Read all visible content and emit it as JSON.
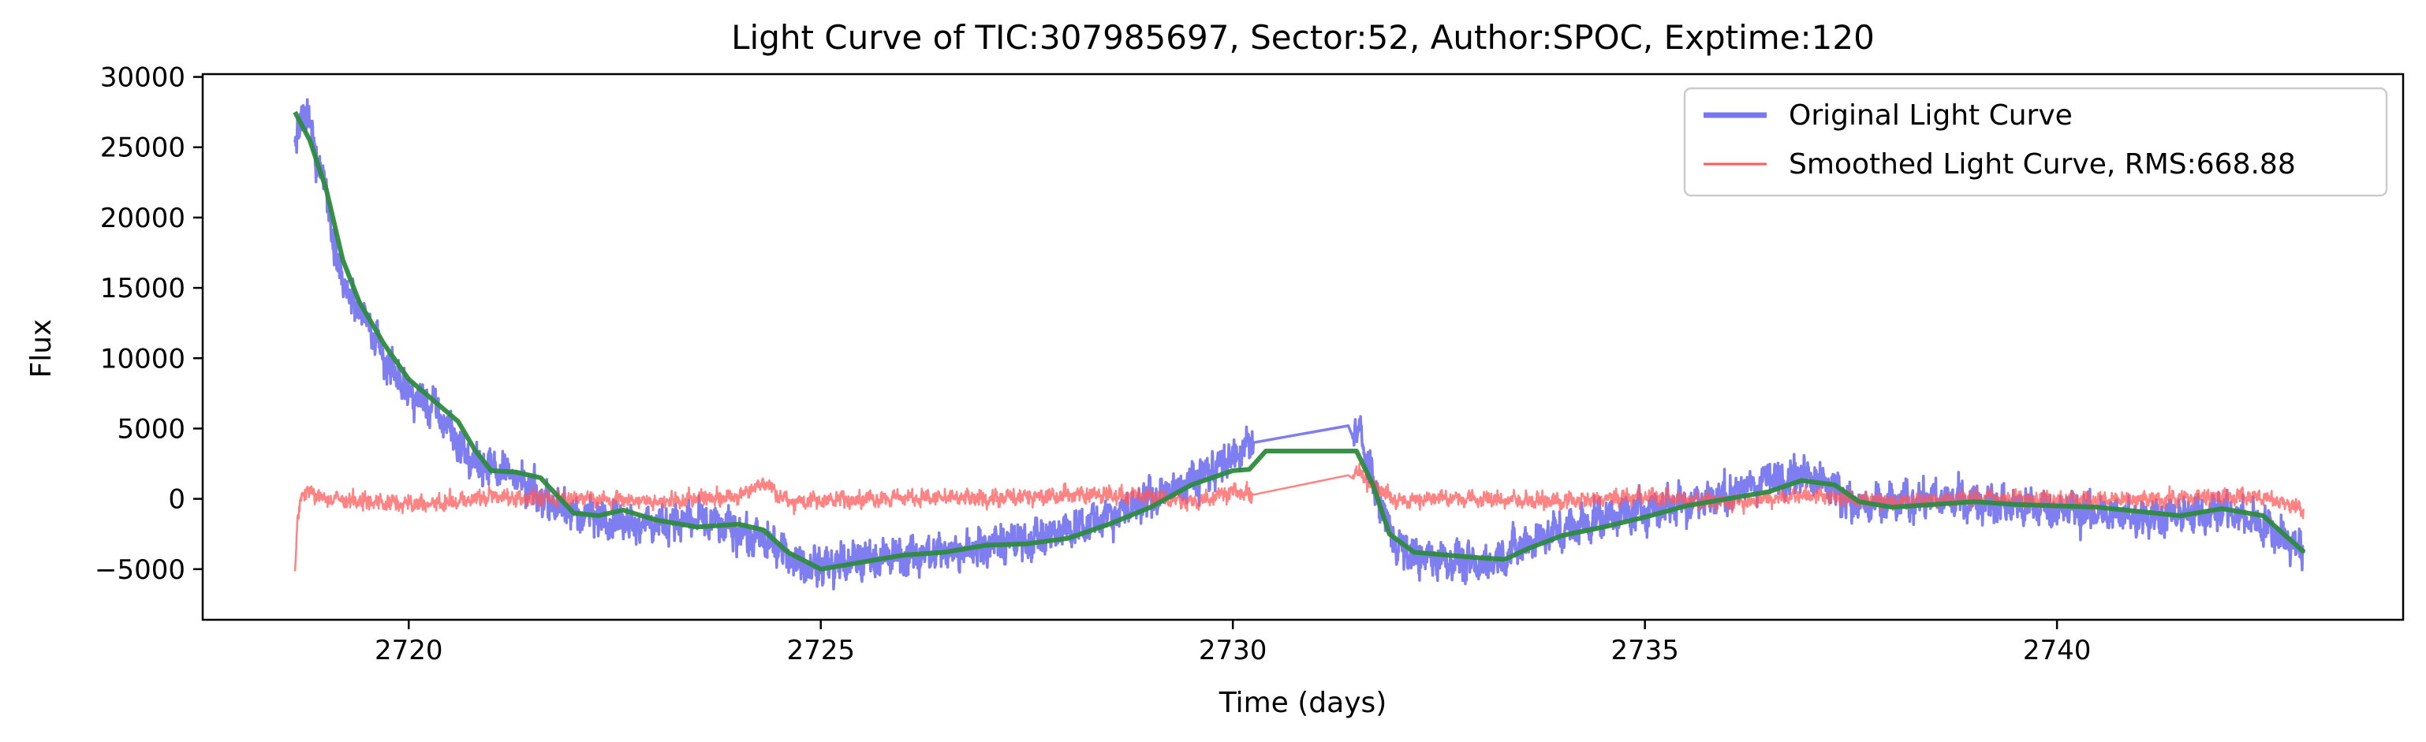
{
  "chart_data": {
    "type": "line",
    "title": "Light Curve of TIC:307985697, Sector:52, Author:SPOC, Exptime:120",
    "xlabel": "Time (days)",
    "ylabel": "Flux",
    "xlim": [
      2717.5,
      2744.2
    ],
    "ylim": [
      -8600,
      30200
    ],
    "xticks": [
      2720,
      2725,
      2730,
      2735,
      2740
    ],
    "yticks": [
      -5000,
      0,
      5000,
      10000,
      15000,
      20000,
      25000,
      30000
    ],
    "xtick_labels": [
      "2720",
      "2725",
      "2730",
      "2735",
      "2740"
    ],
    "ytick_labels": [
      "−5000",
      "0",
      "5000",
      "10000",
      "15000",
      "20000",
      "25000",
      "30000"
    ],
    "grid": false,
    "legend": {
      "position": "top-right",
      "entries": [
        "Original Light Curve",
        "Smoothed Light Curve, RMS:668.88"
      ]
    },
    "series": [
      {
        "name": "Original Light Curve",
        "color": "#7777f0",
        "noise": 1100,
        "x": [
          2718.62,
          2718.7,
          2718.8,
          2718.9,
          2719.0,
          2719.1,
          2719.2,
          2719.3,
          2719.5,
          2719.7,
          2720.0,
          2720.3,
          2720.5,
          2720.7,
          2720.9,
          2721.2,
          2721.5,
          2722.0,
          2722.5,
          2723.0,
          2723.5,
          2724.0,
          2724.5,
          2724.8,
          2725.2,
          2725.6,
          2726.0,
          2726.5,
          2727.0,
          2727.5,
          2728.0,
          2728.5,
          2729.0,
          2729.5,
          2729.8,
          2730.1,
          2730.25,
          2731.4,
          2731.55,
          2731.7,
          2732.0,
          2732.3,
          2732.6,
          2733.0,
          2733.3,
          2733.6,
          2734.0,
          2734.5,
          2735.0,
          2735.5,
          2736.0,
          2736.5,
          2737.0,
          2737.3,
          2737.6,
          2738.0,
          2738.5,
          2739.0,
          2739.5,
          2740.0,
          2740.5,
          2741.0,
          2741.5,
          2742.0,
          2742.5,
          2743.0
        ],
        "y": [
          24500,
          27500,
          26500,
          24000,
          22000,
          18000,
          15500,
          14000,
          12500,
          10000,
          7500,
          6500,
          5000,
          3000,
          2300,
          2000,
          500,
          -1000,
          -1500,
          -1800,
          -1500,
          -2300,
          -3500,
          -4800,
          -4600,
          -4200,
          -4100,
          -3800,
          -3300,
          -3000,
          -2200,
          -1200,
          0,
          1200,
          2200,
          3300,
          4000,
          5200,
          4500,
          1000,
          -3500,
          -4200,
          -4300,
          -4800,
          -4000,
          -3000,
          -2200,
          -1300,
          -800,
          -300,
          300,
          1400,
          1800,
          700,
          -600,
          -300,
          0,
          -200,
          -500,
          -700,
          -1000,
          -1300,
          -1200,
          -800,
          -1800,
          -3700
        ]
      },
      {
        "name": "Smoothed Light Curve, RMS:668.88",
        "color": "#ff5a5a",
        "noise": 480,
        "x": [
          2718.62,
          2718.65,
          2718.7,
          2718.8,
          2719.0,
          2719.5,
          2720.0,
          2720.5,
          2721.0,
          2721.5,
          2722.0,
          2723.0,
          2724.0,
          2724.3,
          2724.6,
          2725.0,
          2726.0,
          2727.0,
          2728.0,
          2729.0,
          2729.5,
          2730.0,
          2730.2,
          2730.25,
          2731.5,
          2731.7,
          2732.0,
          2732.5,
          2733.0,
          2734.0,
          2735.0,
          2736.0,
          2737.0,
          2738.0,
          2739.0,
          2740.0,
          2741.0,
          2742.0,
          2742.5,
          2743.0
        ],
        "y": [
          -5800,
          -1500,
          500,
          400,
          0,
          -200,
          -400,
          -300,
          200,
          0,
          100,
          -200,
          200,
          1200,
          -200,
          -100,
          100,
          0,
          300,
          200,
          -300,
          600,
          200,
          300,
          1800,
          1000,
          -200,
          100,
          0,
          -200,
          200,
          -300,
          300,
          -200,
          100,
          0,
          -100,
          200,
          100,
          -700
        ]
      },
      {
        "name": "",
        "color": "#2e8b3d",
        "noise": 0,
        "x": [
          2718.62,
          2718.8,
          2719.0,
          2719.2,
          2719.4,
          2719.7,
          2720.0,
          2720.3,
          2720.6,
          2720.8,
          2721.0,
          2721.3,
          2721.6,
          2722.0,
          2722.3,
          2722.6,
          2723.0,
          2723.5,
          2724.0,
          2724.3,
          2724.6,
          2725.0,
          2725.5,
          2726.0,
          2726.5,
          2727.0,
          2727.5,
          2728.0,
          2728.5,
          2729.0,
          2729.5,
          2730.0,
          2730.2,
          2730.4,
          2731.0,
          2731.5,
          2731.7,
          2731.9,
          2732.2,
          2732.6,
          2733.0,
          2733.3,
          2733.6,
          2734.0,
          2734.5,
          2735.0,
          2735.5,
          2736.0,
          2736.5,
          2736.9,
          2737.3,
          2737.6,
          2738.0,
          2738.5,
          2739.0,
          2739.5,
          2740.0,
          2740.5,
          2741.0,
          2741.5,
          2742.0,
          2742.5,
          2743.0
        ],
        "y": [
          27500,
          25500,
          22000,
          17000,
          14000,
          11000,
          8500,
          7000,
          5500,
          3500,
          2000,
          1900,
          1500,
          -1000,
          -1200,
          -800,
          -1500,
          -2000,
          -1800,
          -2200,
          -3800,
          -5000,
          -4500,
          -4000,
          -3800,
          -3300,
          -3200,
          -2800,
          -1800,
          -600,
          1000,
          2000,
          2100,
          3400,
          3400,
          3400,
          1000,
          -2500,
          -3800,
          -4000,
          -4200,
          -4300,
          -3500,
          -2600,
          -2000,
          -1300,
          -500,
          0,
          500,
          1300,
          1000,
          -200,
          -600,
          -400,
          -200,
          -400,
          -500,
          -600,
          -900,
          -1200,
          -700,
          -1200,
          -3800
        ]
      }
    ]
  }
}
